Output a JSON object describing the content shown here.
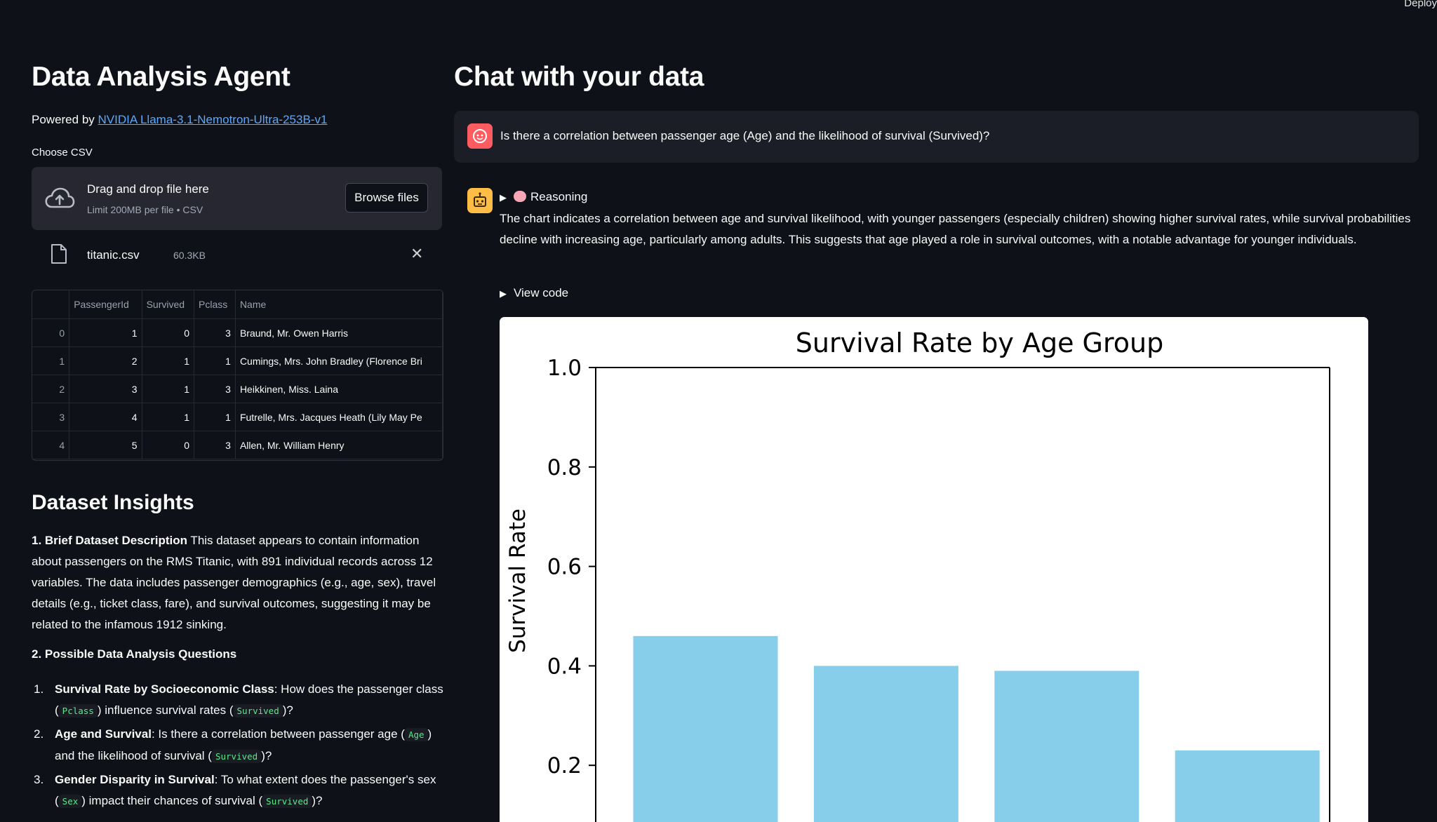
{
  "header": {
    "deploy_label": "Deploy"
  },
  "sidebar": {
    "title": "Data Analysis Agent",
    "powered_prefix": "Powered by",
    "powered_link": "NVIDIA Llama-3.1-Nemotron-Ultra-253B-v1",
    "choose_label": "Choose CSV",
    "uploader": {
      "drag_text": "Drag and drop file here",
      "limit_text": "Limit 200MB per file • CSV",
      "browse_label": "Browse files"
    },
    "file": {
      "name": "titanic.csv",
      "size": "60.3KB"
    },
    "table": {
      "columns": [
        "",
        "PassengerId",
        "Survived",
        "Pclass",
        "Name"
      ],
      "rows": [
        [
          "0",
          "1",
          "0",
          "3",
          "Braund, Mr. Owen Harris"
        ],
        [
          "1",
          "2",
          "1",
          "1",
          "Cumings, Mrs. John Bradley (Florence Bri"
        ],
        [
          "2",
          "3",
          "1",
          "3",
          "Heikkinen, Miss. Laina"
        ],
        [
          "3",
          "4",
          "1",
          "1",
          "Futrelle, Mrs. Jacques Heath (Lily May Pe"
        ],
        [
          "4",
          "5",
          "0",
          "3",
          "Allen, Mr. William Henry"
        ]
      ]
    },
    "insights": {
      "title": "Dataset Insights",
      "desc_heading": "1. Brief Dataset Description",
      "desc_text": " This dataset appears to contain information about passengers on the RMS Titanic, with 891 individual records across 12 variables. The data includes passenger demographics (e.g., age, sex), travel details (e.g., ticket class, fare), and survival outcomes, suggesting it may be related to the infamous 1912 sinking.",
      "questions_heading": "2. Possible Data Analysis Questions",
      "questions": [
        {
          "num": "1.",
          "title": "Survival Rate by Socioeconomic Class",
          "p1": ": How does the passenger class (",
          "c1": "Pclass",
          "p2": ") influence survival rates (",
          "c2": "Survived",
          "p3": ")?"
        },
        {
          "num": "2.",
          "title": "Age and Survival",
          "p1": ": Is there a correlation between passenger age (",
          "c1": "Age",
          "p2": ") and the likelihood of survival (",
          "c2": "Survived",
          "p3": ")?"
        },
        {
          "num": "3.",
          "title": "Gender Disparity in Survival",
          "p1": ": To what extent does the passenger's sex (",
          "c1": "Sex",
          "p2": ") impact their chances of survival (",
          "c2": "Survived",
          "p3": ")?"
        }
      ]
    }
  },
  "main": {
    "title": "Chat with your data",
    "user_message": "Is there a correlation between passenger age (Age) and the likelihood of survival (Survived)?",
    "reasoning_label": "Reasoning",
    "answer": "The chart indicates a correlation between age and survival likelihood, with younger passengers (especially children) showing higher survival rates, while survival probabilities decline with increasing age, particularly among adults. This suggests that age played a role in survival outcomes, with a notable advantage for younger individuals.",
    "view_code_label": "View code"
  },
  "colors": {
    "background": "#0e1117",
    "link": "#5aa8ff",
    "user_avatar": "#ff5c61",
    "bot_avatar": "#ffbd45",
    "bar": "#87ceeb",
    "code_text": "#5ee68a"
  },
  "chart_data": {
    "type": "bar",
    "title": "Survival Rate by Age Group",
    "ylabel": "Survival Rate",
    "xlabel": "",
    "ylim": [
      0,
      1.0
    ],
    "yticks": [
      "0.2",
      "0.4",
      "0.6",
      "0.8",
      "1.0"
    ],
    "values": [
      0.46,
      0.4,
      0.39,
      0.23
    ],
    "bar_color": "#87ceeb"
  }
}
